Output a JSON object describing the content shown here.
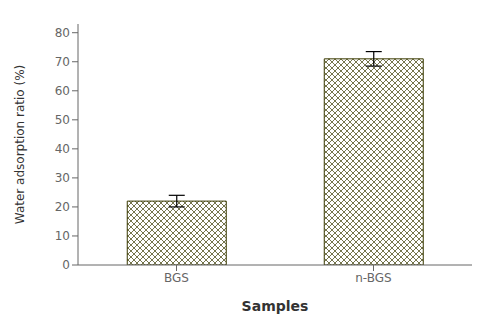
{
  "chart_data": {
    "type": "bar",
    "categories": [
      "BGS",
      "n-BGS"
    ],
    "values": [
      22.0,
      71.0
    ],
    "errors": [
      2.0,
      2.5
    ],
    "color": "#3a3a00",
    "xlabel": "Samples",
    "ylabel": "Water adsorption ratio (%)",
    "ylim": [
      0,
      83
    ],
    "yticks": [
      0,
      10,
      20,
      30,
      40,
      50,
      60,
      70,
      80
    ],
    "grid": false
  }
}
